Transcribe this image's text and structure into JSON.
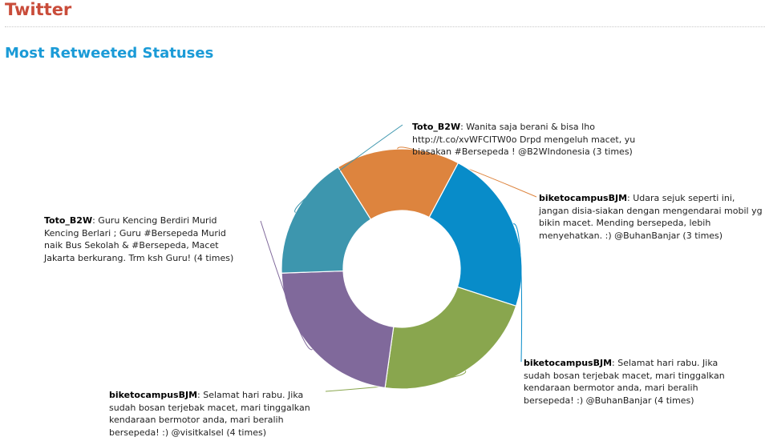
{
  "page": {
    "title": "Twitter",
    "section_title": "Most Retweeted Statuses"
  },
  "chart_data": {
    "type": "pie",
    "donut": true,
    "title": "Most Retweeted Statuses",
    "unit": "times",
    "slices": [
      {
        "user": "biketocampusBJM",
        "text": ": Udara sejuk seperti ini, jangan disia-siakan dengan mengendarai mobil yg bikin macet. Mending bersepeda, lebih menyehatkan. :) @BuhanBanjar (3 times)",
        "value": 3,
        "color": "#dd843e"
      },
      {
        "user": "biketocampusBJM",
        "text": ": Selamat hari rabu. Jika sudah bosan terjebak macet, mari tinggalkan kendaraan bermotor anda, mari beralih bersepeda! :) @BuhanBanjar (4 times)",
        "value": 4,
        "color": "#088cc9"
      },
      {
        "user": "biketocampusBJM",
        "text": ": Selamat hari rabu. Jika sudah bosan terjebak macet, mari tinggalkan kendaraan bermotor anda, mari beralih bersepeda! :) @visitkalsel (4 times)",
        "value": 4,
        "color": "#89a64e"
      },
      {
        "user": "Toto_B2W",
        "text": ": Guru Kencing Berdiri Murid Kencing Berlari ; Guru #Bersepeda Murid naik Bus Sekolah & #Bersepeda, Macet Jakarta berkurang. Trm ksh Guru! (4 times)",
        "value": 4,
        "color": "#80699b"
      },
      {
        "user": "Toto_B2W",
        "text": ": Wanita saja berani & bisa lho http://t.co/xvWFCITW0o Drpd mengeluh macet, yu biasakan #Bersepeda ! @B2WIndonesia (3 times)",
        "value": 3,
        "color": "#3d96ae"
      }
    ]
  }
}
